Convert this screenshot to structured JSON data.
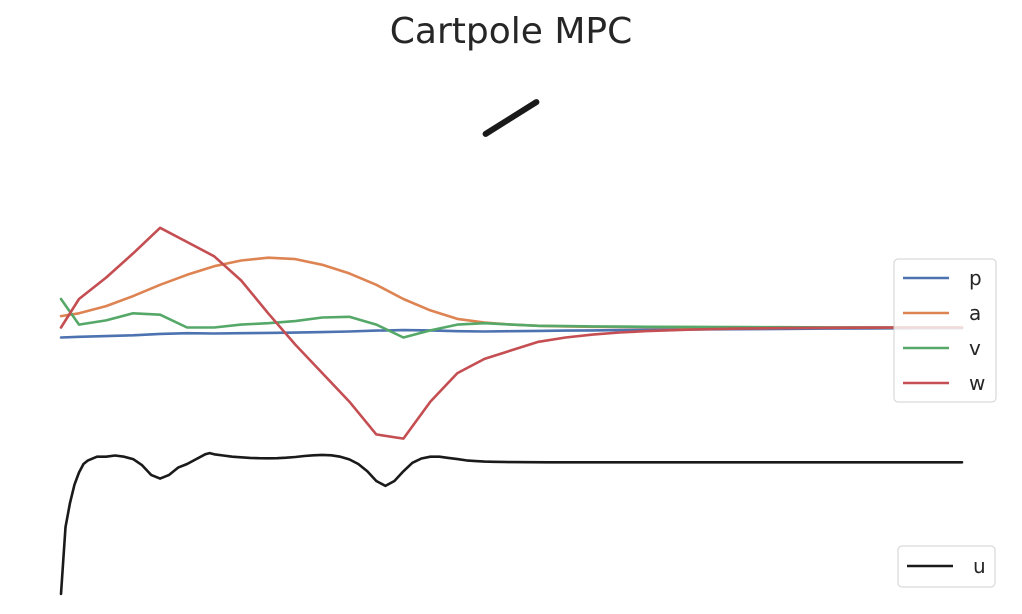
{
  "chart_data": [
    {
      "type": "line",
      "title": "Cartpole MPC",
      "xlabel": "",
      "ylabel": "",
      "grid": false,
      "description_visual": "cart-pole pose drawn as a single black stroke",
      "pole": {
        "color": "#1a1a1a",
        "angle_deg": 32
      }
    },
    {
      "type": "line",
      "xlabel": "",
      "ylabel": "",
      "grid": false,
      "legend": "right",
      "xlim": [
        0,
        100
      ],
      "ylim": [
        -1.0,
        1.0
      ],
      "x": [
        0,
        2,
        5,
        8,
        11,
        14,
        17,
        20,
        23,
        26,
        29,
        32,
        35,
        38,
        41,
        44,
        47,
        50,
        53,
        56,
        59,
        62,
        65,
        70,
        75,
        80,
        85,
        90,
        95,
        100
      ],
      "series": [
        {
          "name": "p",
          "color": "#4c72b0",
          "values": [
            -0.07,
            -0.065,
            -0.06,
            -0.055,
            -0.045,
            -0.04,
            -0.042,
            -0.04,
            -0.038,
            -0.036,
            -0.032,
            -0.028,
            -0.022,
            -0.018,
            -0.02,
            -0.026,
            -0.028,
            -0.026,
            -0.024,
            -0.022,
            -0.02,
            -0.018,
            -0.016,
            -0.014,
            -0.012,
            -0.01,
            -0.008,
            -0.006,
            -0.005,
            -0.004
          ]
        },
        {
          "name": "a",
          "color": "#dd8452",
          "values": [
            0.08,
            0.1,
            0.15,
            0.22,
            0.3,
            0.37,
            0.43,
            0.47,
            0.49,
            0.48,
            0.44,
            0.38,
            0.3,
            0.2,
            0.12,
            0.06,
            0.035,
            0.02,
            0.012,
            0.008,
            0.005,
            0.004,
            0.003,
            0.002,
            0.001,
            0.001,
            0.0,
            0.0,
            0.0,
            0.0
          ]
        },
        {
          "name": "v",
          "color": "#55a868",
          "values": [
            0.2,
            0.02,
            0.05,
            0.1,
            0.09,
            0.0,
            0.0,
            0.02,
            0.03,
            0.045,
            0.07,
            0.075,
            0.02,
            -0.07,
            -0.02,
            0.02,
            0.03,
            0.02,
            0.012,
            0.01,
            0.008,
            0.006,
            0.005,
            0.004,
            0.003,
            0.002,
            0.001,
            0.0,
            0.0,
            0.0
          ]
        },
        {
          "name": "w",
          "color": "#c44e52",
          "values": [
            0.0,
            0.2,
            0.35,
            0.52,
            0.7,
            0.6,
            0.5,
            0.33,
            0.1,
            -0.12,
            -0.32,
            -0.52,
            -0.75,
            -0.78,
            -0.52,
            -0.32,
            -0.22,
            -0.16,
            -0.1,
            -0.07,
            -0.05,
            -0.035,
            -0.025,
            -0.015,
            -0.008,
            -0.004,
            -0.002,
            -0.001,
            0.0,
            0.0
          ]
        }
      ]
    },
    {
      "type": "line",
      "xlabel": "",
      "ylabel": "",
      "grid": false,
      "legend": "bottom-right",
      "xlim": [
        0,
        100
      ],
      "ylim": [
        -1.2,
        0.2
      ],
      "x": [
        0,
        0.5,
        1,
        1.5,
        2,
        2.5,
        3,
        4,
        5,
        6,
        7,
        8,
        9,
        10,
        11,
        12,
        13,
        14,
        15,
        16,
        16.5,
        17,
        18,
        19,
        20,
        21,
        22,
        23,
        24,
        25,
        26,
        27,
        28,
        29,
        30,
        31,
        32,
        33,
        34,
        35,
        36,
        37,
        38,
        39,
        40,
        41,
        42,
        43,
        44,
        45,
        46,
        47,
        48,
        49,
        50,
        52,
        54,
        56,
        58,
        60,
        63,
        66,
        70,
        75,
        80,
        85,
        90,
        95,
        100
      ],
      "series": [
        {
          "name": "u",
          "color": "#1a1a1a",
          "values": [
            -1.15,
            -0.6,
            -0.4,
            -0.25,
            -0.15,
            -0.08,
            -0.05,
            -0.02,
            -0.02,
            -0.01,
            -0.02,
            -0.04,
            -0.09,
            -0.17,
            -0.2,
            -0.17,
            -0.11,
            -0.08,
            -0.04,
            0.0,
            0.01,
            0.0,
            -0.01,
            -0.02,
            -0.025,
            -0.03,
            -0.032,
            -0.033,
            -0.032,
            -0.028,
            -0.022,
            -0.014,
            -0.008,
            -0.005,
            -0.008,
            -0.02,
            -0.042,
            -0.08,
            -0.14,
            -0.22,
            -0.26,
            -0.22,
            -0.14,
            -0.07,
            -0.035,
            -0.02,
            -0.02,
            -0.03,
            -0.04,
            -0.05,
            -0.056,
            -0.06,
            -0.062,
            -0.063,
            -0.064,
            -0.065,
            -0.066,
            -0.066,
            -0.066,
            -0.066,
            -0.066,
            -0.066,
            -0.066,
            -0.066,
            -0.066,
            -0.066,
            -0.066,
            -0.066,
            -0.066
          ]
        }
      ]
    }
  ]
}
